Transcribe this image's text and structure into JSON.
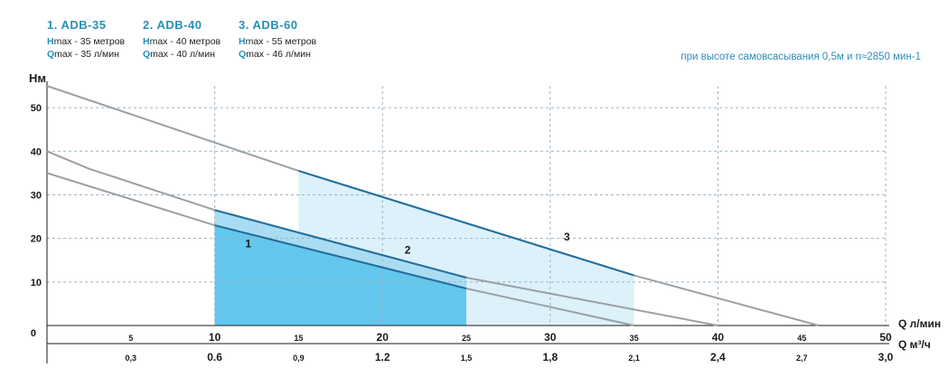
{
  "models": [
    {
      "name": "1. ADB-35",
      "hmax": "max - 35 метров",
      "qmax": "max - 35 л/мин"
    },
    {
      "name": "2. ADB-40",
      "hmax": "max - 40 метров",
      "qmax": "max - 40 л/мин"
    },
    {
      "name": "3. ADB-60",
      "hmax": "max - 55 метров",
      "qmax": "max - 46 л/мин"
    }
  ],
  "hletter": "H",
  "qletter": "Q",
  "condition": "при высоте самовсасывания 0,5м и n≈2850 мин-1",
  "colors": {
    "curve": "#9aa0a5",
    "op_line": "#1f6f9e",
    "fill1": "#63c7ee",
    "fill2": "#a9dcf3",
    "fill3": "#dcf1fa",
    "accent": "#2a8fb8"
  },
  "chart_data": {
    "type": "line",
    "title": "",
    "ylabel": "Hм",
    "xlabel": "Q л/мин",
    "x2label": "Q м³/ч",
    "xlim": [
      0,
      50
    ],
    "ylim": [
      0,
      55
    ],
    "grid": true,
    "y_ticks": [
      {
        "v": 10,
        "label": "10"
      },
      {
        "v": 20,
        "label": "20"
      },
      {
        "v": 30,
        "label": "30"
      },
      {
        "v": 40,
        "label": "40"
      },
      {
        "v": 50,
        "label": "50"
      }
    ],
    "origin_label": "0",
    "x_ticks": [
      {
        "v": 5,
        "label": "5",
        "bold": false
      },
      {
        "v": 10,
        "label": "10",
        "bold": true
      },
      {
        "v": 15,
        "label": "15",
        "bold": false
      },
      {
        "v": 20,
        "label": "20",
        "bold": true
      },
      {
        "v": 25,
        "label": "25",
        "bold": false
      },
      {
        "v": 30,
        "label": "30",
        "bold": true
      },
      {
        "v": 35,
        "label": "35",
        "bold": false
      },
      {
        "v": 40,
        "label": "40",
        "bold": true
      },
      {
        "v": 45,
        "label": "45",
        "bold": false
      },
      {
        "v": 50,
        "label": "50",
        "bold": true
      }
    ],
    "x2_ticks": [
      {
        "v": 5,
        "label": "0,3",
        "bold": false
      },
      {
        "v": 10,
        "label": "0.6",
        "bold": true
      },
      {
        "v": 15,
        "label": "0,9",
        "bold": false
      },
      {
        "v": 20,
        "label": "1.2",
        "bold": true
      },
      {
        "v": 25,
        "label": "1,5",
        "bold": false
      },
      {
        "v": 30,
        "label": "1,8",
        "bold": true
      },
      {
        "v": 35,
        "label": "2,1",
        "bold": false
      },
      {
        "v": 40,
        "label": "2,4",
        "bold": true
      },
      {
        "v": 45,
        "label": "2,7",
        "bold": false
      },
      {
        "v": 50,
        "label": "3,0",
        "bold": true
      }
    ],
    "grid_x": [
      10,
      20,
      30,
      40,
      50
    ],
    "grid_y": [
      10,
      20,
      30,
      40,
      50
    ],
    "series": [
      {
        "name": "1",
        "x": [
          0,
          10,
          25,
          35
        ],
        "y": [
          35,
          23,
          8.5,
          0
        ],
        "op_x": [
          10,
          25
        ],
        "op_y": [
          23,
          8.5
        ],
        "label_pos": [
          12,
          18
        ]
      },
      {
        "name": "2",
        "x": [
          0,
          2.5,
          10,
          25,
          40
        ],
        "y": [
          40,
          36,
          26.5,
          11,
          0
        ],
        "op_x": [
          10,
          25
        ],
        "op_y": [
          26.5,
          11
        ],
        "label_pos": [
          21.5,
          16.5
        ]
      },
      {
        "name": "3",
        "x": [
          0,
          15,
          35,
          46
        ],
        "y": [
          55,
          35.5,
          11.5,
          0
        ],
        "op_x": [
          15,
          35
        ],
        "op_y": [
          35.5,
          11.5
        ],
        "label_pos": [
          31,
          19.5
        ]
      }
    ]
  }
}
